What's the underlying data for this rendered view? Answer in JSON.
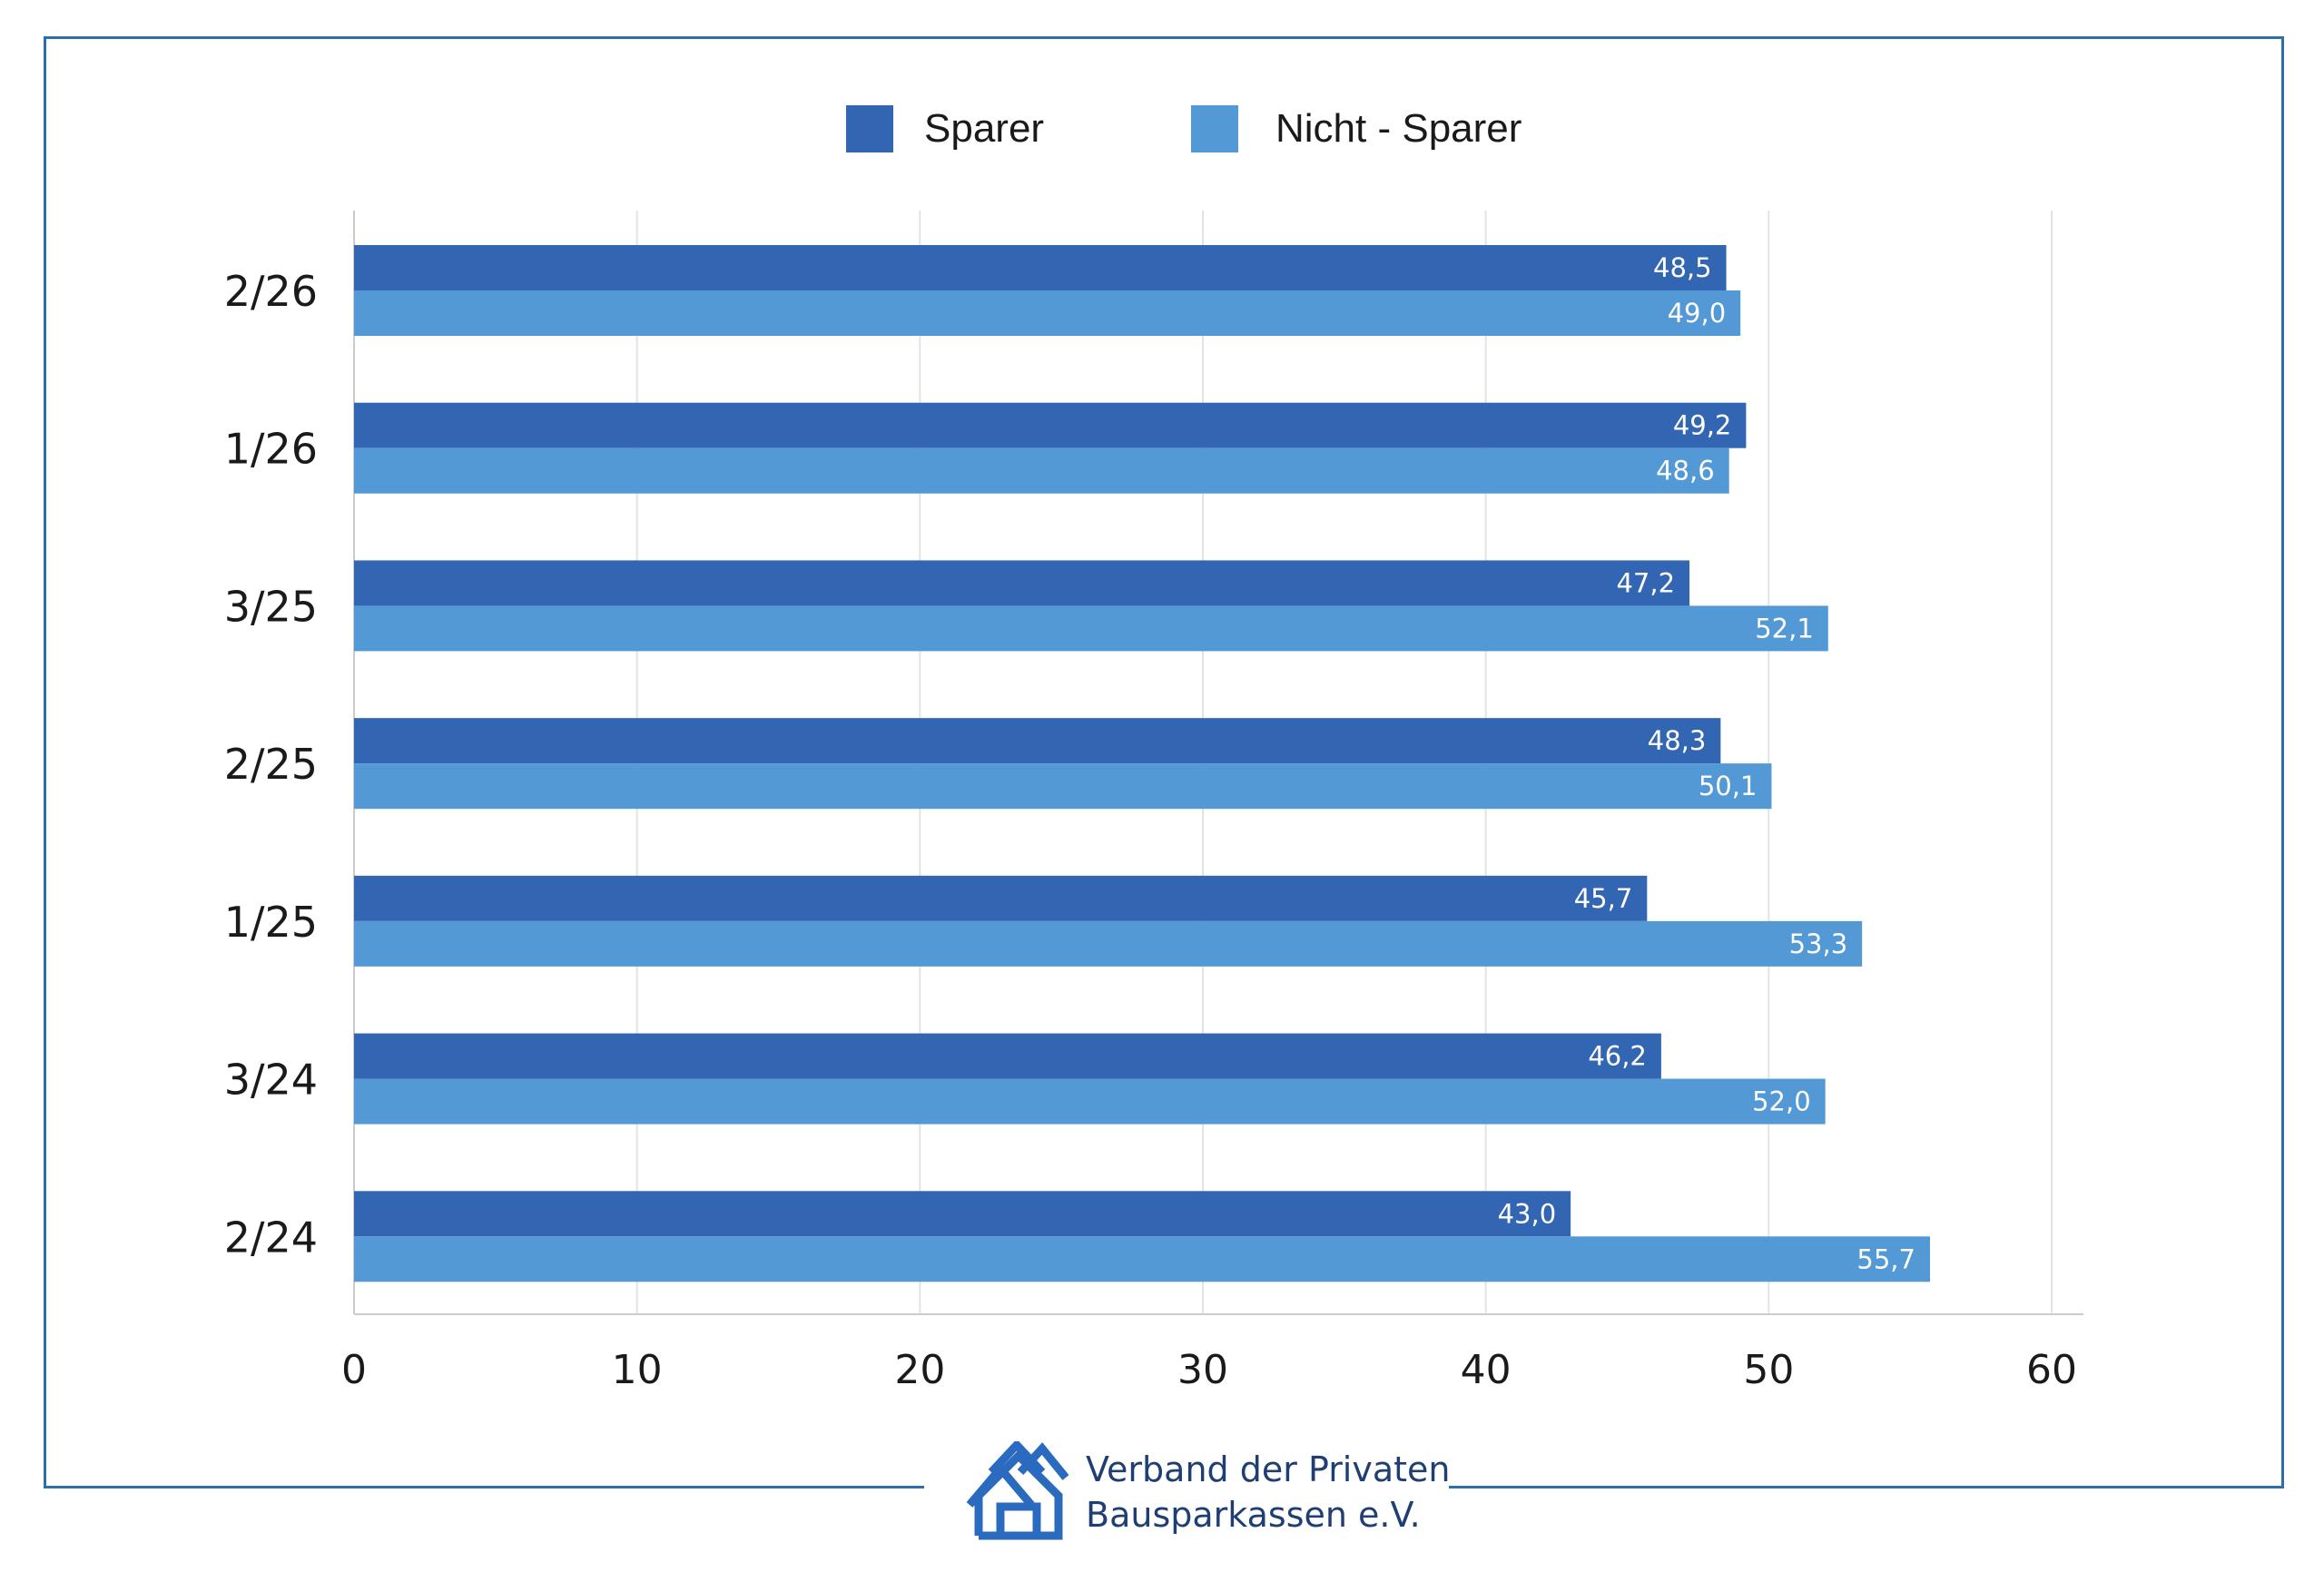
{
  "colors": {
    "sparer": "#3366b2",
    "nicht_sparer": "#5299d5",
    "frame": "#2f6fa8",
    "grid": "#e3e3e3",
    "axis": "#cccccc",
    "logo": "#2a6bbf"
  },
  "legend": {
    "items": [
      {
        "label": "Sparer",
        "color": "#3366b2"
      },
      {
        "label": "Nicht - Sparer",
        "color": "#5299d5"
      }
    ]
  },
  "chart_data": {
    "type": "bar",
    "orientation": "horizontal",
    "categories": [
      "2/26",
      "1/26",
      "3/25",
      "2/25",
      "1/25",
      "3/24",
      "2/24"
    ],
    "series": [
      {
        "name": "Sparer",
        "values": [
          48.5,
          49.2,
          47.2,
          48.3,
          45.7,
          46.2,
          43.0
        ],
        "labels": [
          "48,5",
          "49,2",
          "47,2",
          "48,3",
          "45,7",
          "46,2",
          "43,0"
        ]
      },
      {
        "name": "Nicht - Sparer",
        "values": [
          49.0,
          48.6,
          52.1,
          50.1,
          53.3,
          52.0,
          55.7
        ],
        "labels": [
          "49,0",
          "48,6",
          "52,1",
          "50,1",
          "53,3",
          "52,0",
          "55,7"
        ]
      }
    ],
    "xlim": [
      0,
      60
    ],
    "xticks": [
      0,
      10,
      20,
      30,
      40,
      50,
      60
    ],
    "grid": true,
    "legend_position": "top-center",
    "data_labels": true
  },
  "footer": {
    "org_line1": "Verband der Privaten",
    "org_line2": "Bausparkassen e.V.",
    "logo_icon": "house-icon"
  }
}
